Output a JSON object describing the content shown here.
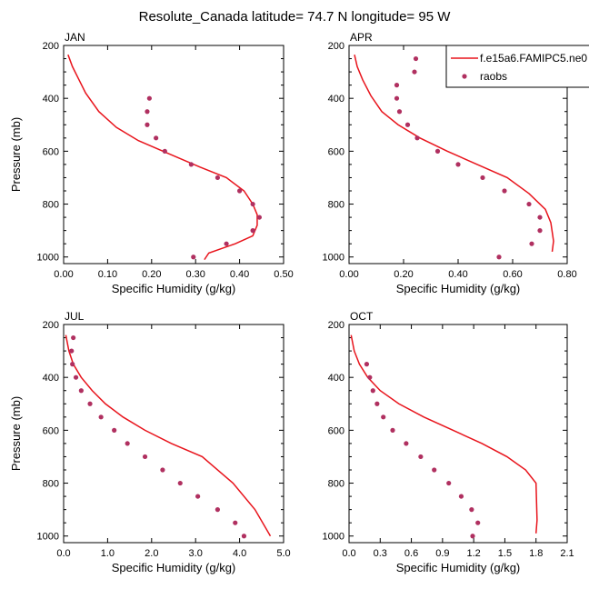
{
  "page_title": "Resolute_Canada  latitude= 74.7 N longitude= 95 W",
  "colors": {
    "model": "#e8141c",
    "raobs": "#b03060",
    "axis": "#000000"
  },
  "legend": {
    "model_label": "f.e15a6.FAMIPC5.ne0",
    "raobs_label": "raobs"
  },
  "chart_data": [
    {
      "type": "line",
      "panel_label": "JAN",
      "xlabel": "Specific Humidity (g/kg)",
      "ylabel": "Pressure (mb)",
      "xlim": [
        0,
        0.5
      ],
      "ylim": [
        1025,
        200
      ],
      "x_ticks": [
        0,
        0.1,
        0.2,
        0.3,
        0.4,
        0.5
      ],
      "x_tick_labels": [
        "0.00",
        "0.10",
        "0.20",
        "0.30",
        "0.40",
        "0.50"
      ],
      "y_ticks": [
        200,
        400,
        600,
        800,
        1000
      ],
      "y_tick_labels": [
        "200",
        "400",
        "600",
        "800",
        "1000"
      ],
      "series": [
        {
          "name": "f.e15a6.FAMIPC5.ne0",
          "kind": "line",
          "x": [
            0.01,
            0.02,
            0.035,
            0.05,
            0.08,
            0.12,
            0.17,
            0.24,
            0.31,
            0.37,
            0.41,
            0.43,
            0.44,
            0.44,
            0.43,
            0.39,
            0.33,
            0.32
          ],
          "y": [
            235,
            280,
            330,
            380,
            450,
            510,
            560,
            610,
            660,
            700,
            750,
            800,
            840,
            880,
            920,
            950,
            985,
            1010
          ]
        },
        {
          "name": "raobs",
          "kind": "scatter",
          "x": [
            0.195,
            0.19,
            0.19,
            0.21,
            0.23,
            0.29,
            0.35,
            0.4,
            0.43,
            0.445,
            0.43,
            0.37,
            0.295
          ],
          "y": [
            400,
            450,
            500,
            550,
            600,
            650,
            700,
            750,
            800,
            850,
            900,
            950,
            1000
          ]
        }
      ]
    },
    {
      "type": "line",
      "panel_label": "APR",
      "xlabel": "Specific Humidity (g/kg)",
      "ylabel": "",
      "xlim": [
        0,
        0.8
      ],
      "ylim": [
        1025,
        200
      ],
      "x_ticks": [
        0,
        0.2,
        0.4,
        0.6,
        0.8
      ],
      "x_tick_labels": [
        "0.00",
        "0.20",
        "0.40",
        "0.60",
        "0.80"
      ],
      "y_ticks": [
        200,
        400,
        600,
        800,
        1000
      ],
      "y_tick_labels": [
        "200",
        "400",
        "600",
        "800",
        "1000"
      ],
      "series": [
        {
          "name": "f.e15a6.FAMIPC5.ne0",
          "kind": "line",
          "x": [
            0.02,
            0.03,
            0.05,
            0.08,
            0.12,
            0.18,
            0.26,
            0.36,
            0.47,
            0.58,
            0.66,
            0.72,
            0.74,
            0.75,
            0.745
          ],
          "y": [
            235,
            280,
            330,
            390,
            450,
            500,
            550,
            600,
            650,
            700,
            760,
            820,
            870,
            940,
            980
          ]
        },
        {
          "name": "raobs",
          "kind": "scatter",
          "x": [
            0.245,
            0.24,
            0.175,
            0.175,
            0.185,
            0.215,
            0.25,
            0.325,
            0.4,
            0.49,
            0.57,
            0.66,
            0.7,
            0.7,
            0.67,
            0.55
          ],
          "y": [
            250,
            300,
            350,
            400,
            450,
            500,
            550,
            600,
            650,
            700,
            750,
            800,
            850,
            900,
            950,
            1000
          ]
        }
      ]
    },
    {
      "type": "line",
      "panel_label": "JUL",
      "xlabel": "Specific Humidity (g/kg)",
      "ylabel": "Pressure (mb)",
      "xlim": [
        0,
        5
      ],
      "ylim": [
        1025,
        200
      ],
      "x_ticks": [
        0,
        1,
        2,
        3,
        4,
        5
      ],
      "x_tick_labels": [
        "0.0",
        "1.0",
        "2.0",
        "3.0",
        "4.0",
        "5.0"
      ],
      "y_ticks": [
        200,
        400,
        600,
        800,
        1000
      ],
      "y_tick_labels": [
        "200",
        "400",
        "600",
        "800",
        "1000"
      ],
      "series": [
        {
          "name": "f.e15a6.FAMIPC5.ne0",
          "kind": "line",
          "x": [
            0.05,
            0.12,
            0.22,
            0.4,
            0.65,
            0.95,
            1.35,
            1.85,
            2.45,
            3.15,
            3.85,
            4.35,
            4.7
          ],
          "y": [
            240,
            300,
            350,
            400,
            450,
            500,
            550,
            600,
            650,
            700,
            800,
            900,
            1000
          ]
        },
        {
          "name": "raobs",
          "kind": "scatter",
          "x": [
            0.22,
            0.18,
            0.2,
            0.28,
            0.4,
            0.6,
            0.85,
            1.15,
            1.45,
            1.85,
            2.25,
            2.65,
            3.05,
            3.5,
            3.9,
            4.1
          ],
          "y": [
            250,
            300,
            350,
            400,
            450,
            500,
            550,
            600,
            650,
            700,
            750,
            800,
            850,
            900,
            950,
            1000
          ]
        }
      ]
    },
    {
      "type": "line",
      "panel_label": "OCT",
      "xlabel": "Specific Humidity (g/kg)",
      "ylabel": "",
      "xlim": [
        0,
        2.1
      ],
      "ylim": [
        1025,
        200
      ],
      "x_ticks": [
        0,
        0.3,
        0.6,
        0.9,
        1.2,
        1.5,
        1.8,
        2.1
      ],
      "x_tick_labels": [
        "0.0",
        "0.3",
        "0.6",
        "0.9",
        "1.2",
        "1.5",
        "1.8",
        "2.1"
      ],
      "y_ticks": [
        200,
        400,
        600,
        800,
        1000
      ],
      "y_tick_labels": [
        "200",
        "400",
        "600",
        "800",
        "1000"
      ],
      "series": [
        {
          "name": "f.e15a6.FAMIPC5.ne0",
          "kind": "line",
          "x": [
            0.02,
            0.05,
            0.1,
            0.18,
            0.3,
            0.48,
            0.72,
            1.0,
            1.28,
            1.52,
            1.7,
            1.8,
            1.81,
            1.8
          ],
          "y": [
            240,
            300,
            350,
            400,
            450,
            500,
            550,
            600,
            650,
            700,
            750,
            800,
            940,
            990
          ]
        },
        {
          "name": "raobs",
          "kind": "scatter",
          "x": [
            0.17,
            0.2,
            0.23,
            0.27,
            0.33,
            0.42,
            0.55,
            0.69,
            0.82,
            0.96,
            1.08,
            1.18,
            1.24,
            1.19
          ],
          "y": [
            350,
            400,
            450,
            500,
            550,
            600,
            650,
            700,
            750,
            800,
            850,
            900,
            950,
            1000
          ]
        }
      ]
    }
  ]
}
